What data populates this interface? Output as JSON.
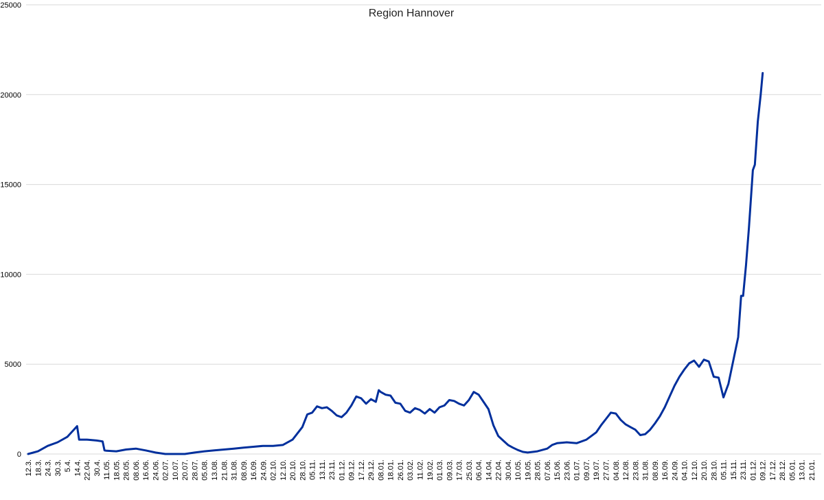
{
  "chart_data": {
    "type": "line",
    "title": "Region Hannover",
    "xlabel": "",
    "ylabel": "",
    "ylim": [
      0,
      25000
    ],
    "yticks": [
      0,
      5000,
      10000,
      15000,
      20000,
      25000
    ],
    "grid": true,
    "legend": "none",
    "x_tick_labels": [
      "12.3.",
      "18.3.",
      "24.3.",
      "30.3.",
      "5.4.",
      "14.4.",
      "22.04.",
      "30.4.",
      "11.05.",
      "18.05.",
      "28.05.",
      "08.06.",
      "16.06.",
      "24.06.",
      "02.07.",
      "10.07.",
      "20.07.",
      "28.07.",
      "05.08.",
      "13.08.",
      "21.08.",
      "31.08.",
      "08.09.",
      "16.09.",
      "24.09.",
      "02.10.",
      "12.10.",
      "20.10.",
      "28.10.",
      "05.11.",
      "13.11.",
      "23.11.",
      "01.12.",
      "09.12.",
      "17.12.",
      "29.12.",
      "08.01.",
      "18.01.",
      "26.01.",
      "03.02.",
      "11.02.",
      "19.02.",
      "01.03.",
      "09.03.",
      "17.03.",
      "25.03.",
      "06.04.",
      "14.04.",
      "22.04.",
      "30.04.",
      "10.05.",
      "19.05.",
      "28.05.",
      "07.06.",
      "15.06.",
      "23.06.",
      "01.07.",
      "09.07.",
      "19.07.",
      "27.07.",
      "04.08.",
      "12.08.",
      "23.08.",
      "31.08.",
      "08.09.",
      "16.09.",
      "24.09.",
      "04.10.",
      "12.10.",
      "20.10.",
      "28.10.",
      "05.11.",
      "15.11.",
      "23.11.",
      "01.12.",
      "09.12.",
      "17.12.",
      "28.12.",
      "05.01.",
      "13.01.",
      "21.01."
    ],
    "series": [
      {
        "color": "#002f9c",
        "points": [
          [
            0,
            0
          ],
          [
            1,
            150
          ],
          [
            2,
            450
          ],
          [
            3,
            650
          ],
          [
            4,
            950
          ],
          [
            5,
            1550
          ],
          [
            5.2,
            800
          ],
          [
            6,
            800
          ],
          [
            7,
            750
          ],
          [
            7.6,
            700
          ],
          [
            7.8,
            200
          ],
          [
            8,
            180
          ],
          [
            9,
            150
          ],
          [
            10,
            250
          ],
          [
            11,
            300
          ],
          [
            12,
            200
          ],
          [
            13,
            80
          ],
          [
            14,
            0
          ],
          [
            15,
            0
          ],
          [
            16,
            0
          ],
          [
            17,
            80
          ],
          [
            18,
            150
          ],
          [
            19,
            200
          ],
          [
            20,
            250
          ],
          [
            21,
            300
          ],
          [
            22,
            350
          ],
          [
            23,
            400
          ],
          [
            24,
            450
          ],
          [
            25,
            450
          ],
          [
            26,
            500
          ],
          [
            27,
            800
          ],
          [
            28,
            1500
          ],
          [
            28.5,
            2200
          ],
          [
            29,
            2300
          ],
          [
            29.5,
            2650
          ],
          [
            30,
            2550
          ],
          [
            30.5,
            2600
          ],
          [
            31,
            2400
          ],
          [
            31.5,
            2150
          ],
          [
            32,
            2050
          ],
          [
            32.5,
            2300
          ],
          [
            33,
            2700
          ],
          [
            33.5,
            3200
          ],
          [
            34,
            3100
          ],
          [
            34.5,
            2800
          ],
          [
            35,
            3050
          ],
          [
            35.5,
            2900
          ],
          [
            35.8,
            3550
          ],
          [
            36,
            3450
          ],
          [
            36.5,
            3300
          ],
          [
            37,
            3250
          ],
          [
            37.5,
            2850
          ],
          [
            38,
            2800
          ],
          [
            38.5,
            2400
          ],
          [
            39,
            2300
          ],
          [
            39.5,
            2550
          ],
          [
            40,
            2450
          ],
          [
            40.5,
            2250
          ],
          [
            41,
            2500
          ],
          [
            41.5,
            2300
          ],
          [
            42,
            2600
          ],
          [
            42.5,
            2700
          ],
          [
            43,
            3000
          ],
          [
            43.5,
            2950
          ],
          [
            44,
            2800
          ],
          [
            44.5,
            2700
          ],
          [
            45,
            3000
          ],
          [
            45.5,
            3450
          ],
          [
            46,
            3300
          ],
          [
            46.5,
            2900
          ],
          [
            47,
            2500
          ],
          [
            47.5,
            1600
          ],
          [
            48,
            1000
          ],
          [
            48.5,
            750
          ],
          [
            49,
            500
          ],
          [
            49.5,
            350
          ],
          [
            50,
            220
          ],
          [
            50.5,
            120
          ],
          [
            51,
            80
          ],
          [
            52,
            150
          ],
          [
            53,
            300
          ],
          [
            53.5,
            500
          ],
          [
            54,
            600
          ],
          [
            55,
            650
          ],
          [
            56,
            600
          ],
          [
            57,
            800
          ],
          [
            58,
            1200
          ],
          [
            58.5,
            1600
          ],
          [
            59,
            1950
          ],
          [
            59.5,
            2300
          ],
          [
            60,
            2250
          ],
          [
            60.5,
            1900
          ],
          [
            61,
            1650
          ],
          [
            61.5,
            1500
          ],
          [
            62,
            1350
          ],
          [
            62.5,
            1050
          ],
          [
            63,
            1100
          ],
          [
            63.5,
            1350
          ],
          [
            64,
            1700
          ],
          [
            64.5,
            2100
          ],
          [
            65,
            2600
          ],
          [
            65.5,
            3200
          ],
          [
            66,
            3800
          ],
          [
            66.5,
            4300
          ],
          [
            67,
            4700
          ],
          [
            67.5,
            5050
          ],
          [
            68,
            5200
          ],
          [
            68.5,
            4850
          ],
          [
            69,
            5250
          ],
          [
            69.5,
            5150
          ],
          [
            70,
            4300
          ],
          [
            70.5,
            4250
          ],
          [
            71,
            3150
          ],
          [
            71.5,
            3900
          ],
          [
            72,
            5200
          ],
          [
            72.5,
            6500
          ],
          [
            72.8,
            8800
          ],
          [
            73,
            8800
          ],
          [
            73.3,
            10500
          ],
          [
            73.6,
            12600
          ],
          [
            74,
            15800
          ],
          [
            74.2,
            16100
          ],
          [
            74.5,
            18500
          ],
          [
            74.8,
            20000
          ],
          [
            75,
            21200
          ]
        ]
      }
    ]
  }
}
